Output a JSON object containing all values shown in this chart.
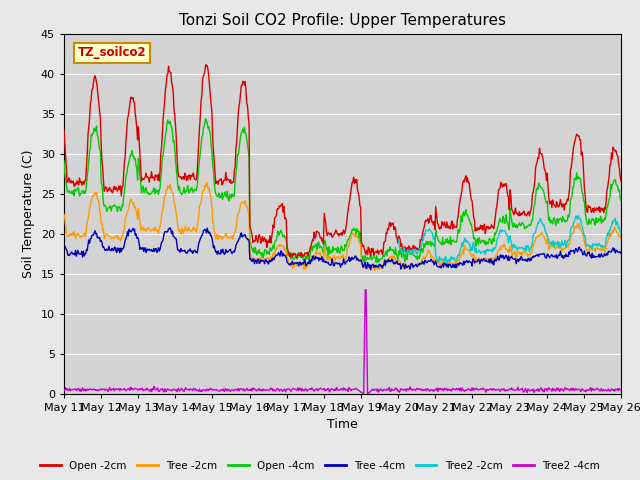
{
  "title": "Tonzi Soil CO2 Profile: Upper Temperatures",
  "xlabel": "Time",
  "ylabel": "Soil Temperature (C)",
  "ylim": [
    0,
    45
  ],
  "background_color": "#e8e8e8",
  "plot_bg_color": "#d3d3d3",
  "watermark_text": "TZ_soilco2",
  "watermark_color": "#cc0000",
  "watermark_bg": "#ffffcc",
  "watermark_border": "#cc8800",
  "series": [
    {
      "label": "Open -2cm",
      "color": "#dd0000"
    },
    {
      "label": "Tree -2cm",
      "color": "#ff9900"
    },
    {
      "label": "Open -4cm",
      "color": "#00cc00"
    },
    {
      "label": "Tree -4cm",
      "color": "#0000bb"
    },
    {
      "label": "Tree2 -2cm",
      "color": "#00cccc"
    },
    {
      "label": "Tree2 -4cm",
      "color": "#cc00cc"
    }
  ],
  "tick_labels": [
    "May 11",
    "May 12",
    "May 13",
    "May 14",
    "May 15",
    "May 16",
    "May 17",
    "May 18",
    "May 19",
    "May 20",
    "May 21",
    "May 22",
    "May 23",
    "May 24",
    "May 25",
    "May 26"
  ],
  "yticks": [
    0,
    5,
    10,
    15,
    20,
    25,
    30,
    35,
    40,
    45
  ]
}
